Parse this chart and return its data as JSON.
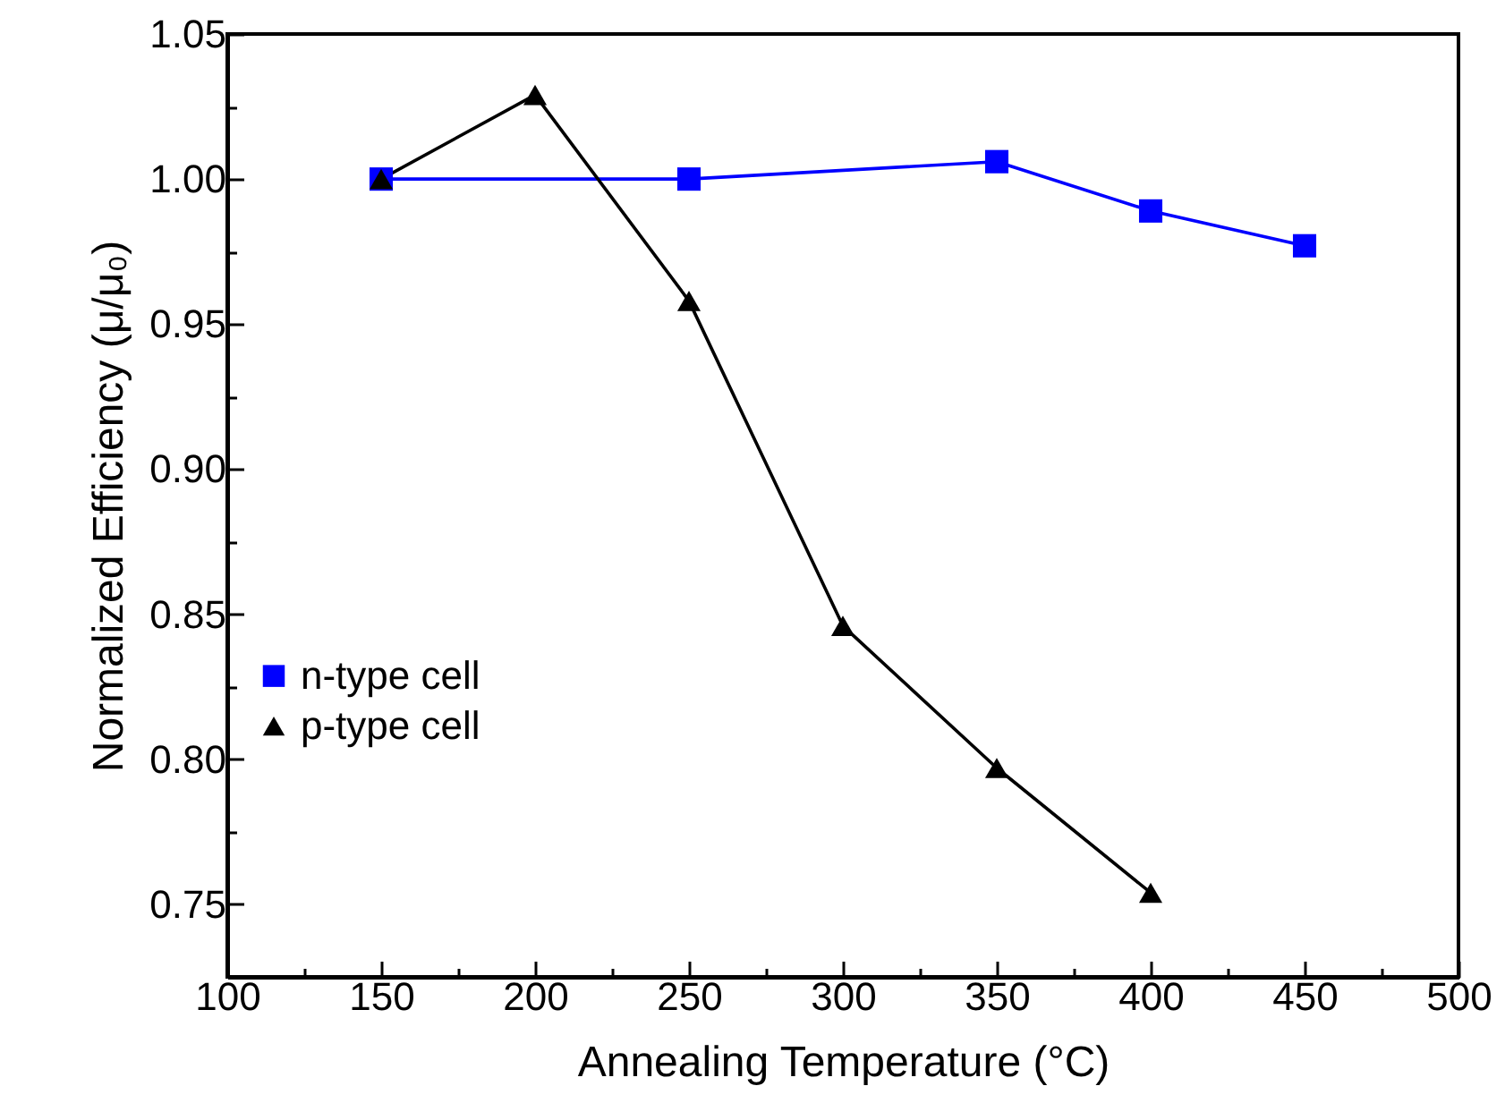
{
  "chart_data": {
    "type": "line",
    "xlabel": "Annealing Temperature (°C)",
    "ylabel": "Normalized Efficiency (μ/μ₀)",
    "x": [
      150,
      250,
      350,
      400,
      450
    ],
    "series": [
      {
        "name": "n-type cell",
        "color": "#0000ff",
        "marker": "square",
        "values": [
          1.0,
          1.0,
          1.006,
          0.989,
          0.977
        ]
      },
      {
        "name": "p-type cell",
        "color": "#000000",
        "marker": "triangle",
        "x": [
          150,
          200,
          250,
          300,
          350,
          400
        ],
        "values": [
          1.0,
          1.029,
          0.958,
          0.846,
          0.797,
          0.754
        ]
      }
    ],
    "xlim": [
      100,
      500
    ],
    "ylim": [
      0.725,
      1.05
    ],
    "xticks": [
      100,
      {
        "value": 125,
        "label": null
      },
      150,
      {
        "value": 175,
        "label": null
      },
      200,
      {
        "value": 225,
        "label": null
      },
      250,
      {
        "value": 275,
        "label": null
      },
      300,
      {
        "value": 325,
        "label": null
      },
      350,
      {
        "value": 375,
        "label": null
      },
      400,
      {
        "value": 425,
        "label": null
      },
      450,
      {
        "value": 475,
        "label": null
      },
      500
    ],
    "yticks": [
      {
        "value": 0.725,
        "label": null
      },
      {
        "value": 0.75,
        "label": "0.75"
      },
      {
        "value": 0.775,
        "label": null
      },
      {
        "value": 0.8,
        "label": "0.80"
      },
      {
        "value": 0.825,
        "label": null
      },
      {
        "value": 0.85,
        "label": "0.85"
      },
      {
        "value": 0.875,
        "label": null
      },
      {
        "value": 0.9,
        "label": "0.90"
      },
      {
        "value": 0.925,
        "label": null
      },
      {
        "value": 0.95,
        "label": "0.95"
      },
      {
        "value": 0.975,
        "label": null
      },
      {
        "value": 1.0,
        "label": "1.00"
      },
      {
        "value": 1.025,
        "label": null
      },
      {
        "value": 1.05,
        "label": "1.05"
      }
    ],
    "grid": false,
    "legend": "left",
    "line_style": "solid"
  }
}
